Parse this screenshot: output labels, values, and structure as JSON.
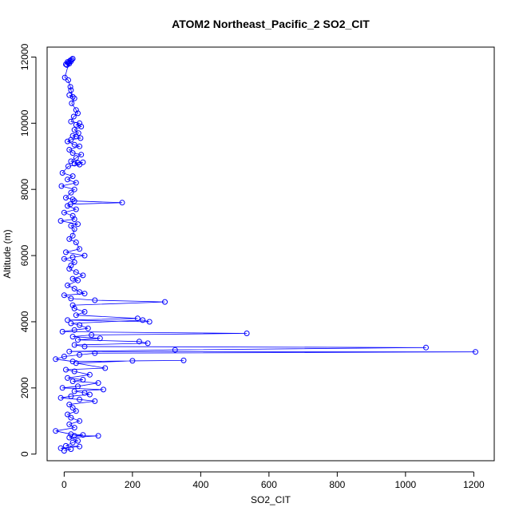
{
  "chart_data": {
    "type": "line",
    "title": "ATOM2 Northeast_Pacific_2 SO2_CIT",
    "xlabel": "SO2_CIT",
    "ylabel": "Altitude (m)",
    "xlim": [
      -50,
      1260
    ],
    "ylim": [
      -200,
      12300
    ],
    "x_ticks": [
      0,
      200,
      400,
      600,
      800,
      1000,
      1200
    ],
    "y_ticks": [
      0,
      2000,
      4000,
      6000,
      8000,
      10000,
      12000
    ],
    "grid": false,
    "legend": "none",
    "series_color": "#0000ff",
    "marker": "open-circle",
    "points": [
      [
        25,
        11950
      ],
      [
        18,
        11900
      ],
      [
        10,
        11850
      ],
      [
        5,
        11780
      ],
      [
        12,
        11820
      ],
      [
        20,
        11870
      ],
      [
        15,
        11800
      ],
      [
        8,
        11760
      ],
      [
        22,
        11920
      ],
      [
        14,
        11840
      ],
      [
        2,
        11380
      ],
      [
        12,
        11300
      ],
      [
        18,
        11100
      ],
      [
        20,
        11000
      ],
      [
        25,
        10800
      ],
      [
        15,
        10850
      ],
      [
        30,
        10750
      ],
      [
        22,
        10600
      ],
      [
        35,
        10400
      ],
      [
        40,
        10300
      ],
      [
        28,
        10200
      ],
      [
        20,
        10050
      ],
      [
        45,
        10000
      ],
      [
        35,
        9950
      ],
      [
        50,
        9900
      ],
      [
        30,
        9800
      ],
      [
        42,
        9700
      ],
      [
        25,
        9620
      ],
      [
        35,
        9600
      ],
      [
        48,
        9550
      ],
      [
        20,
        9500
      ],
      [
        10,
        9450
      ],
      [
        30,
        9350
      ],
      [
        45,
        9300
      ],
      [
        15,
        9200
      ],
      [
        25,
        9100
      ],
      [
        50,
        9050
      ],
      [
        35,
        8950
      ],
      [
        20,
        8850
      ],
      [
        40,
        8800
      ],
      [
        55,
        8820
      ],
      [
        30,
        8780
      ],
      [
        45,
        8750
      ],
      [
        12,
        8700
      ],
      [
        -5,
        8500
      ],
      [
        25,
        8400
      ],
      [
        10,
        8300
      ],
      [
        35,
        8200
      ],
      [
        -8,
        8100
      ],
      [
        30,
        8000
      ],
      [
        20,
        7900
      ],
      [
        5,
        7750
      ],
      [
        25,
        7700
      ],
      [
        30,
        7650
      ],
      [
        170,
        7600
      ],
      [
        18,
        7550
      ],
      [
        10,
        7500
      ],
      [
        35,
        7400
      ],
      [
        0,
        7300
      ],
      [
        25,
        7200
      ],
      [
        30,
        7100
      ],
      [
        -10,
        7050
      ],
      [
        40,
        6950
      ],
      [
        20,
        6900
      ],
      [
        30,
        6800
      ],
      [
        25,
        6600
      ],
      [
        15,
        6500
      ],
      [
        35,
        6400
      ],
      [
        45,
        6200
      ],
      [
        5,
        6100
      ],
      [
        60,
        6000
      ],
      [
        25,
        5950
      ],
      [
        0,
        5900
      ],
      [
        30,
        5800
      ],
      [
        20,
        5700
      ],
      [
        15,
        5600
      ],
      [
        35,
        5500
      ],
      [
        55,
        5400
      ],
      [
        25,
        5300
      ],
      [
        40,
        5250
      ],
      [
        10,
        5100
      ],
      [
        30,
        5000
      ],
      [
        45,
        4900
      ],
      [
        60,
        4850
      ],
      [
        0,
        4800
      ],
      [
        20,
        4700
      ],
      [
        90,
        4650
      ],
      [
        295,
        4600
      ],
      [
        25,
        4500
      ],
      [
        30,
        4400
      ],
      [
        60,
        4300
      ],
      [
        35,
        4200
      ],
      [
        215,
        4100
      ],
      [
        10,
        4050
      ],
      [
        250,
        4000
      ],
      [
        230,
        4050
      ],
      [
        20,
        3950
      ],
      [
        45,
        3900
      ],
      [
        70,
        3800
      ],
      [
        30,
        3750
      ],
      [
        -5,
        3700
      ],
      [
        535,
        3650
      ],
      [
        80,
        3600
      ],
      [
        25,
        3550
      ],
      [
        105,
        3500
      ],
      [
        40,
        3450
      ],
      [
        220,
        3400
      ],
      [
        245,
        3350
      ],
      [
        30,
        3300
      ],
      [
        60,
        3250
      ],
      [
        1060,
        3220
      ],
      [
        325,
        3150
      ],
      [
        15,
        3100
      ],
      [
        1205,
        3090
      ],
      [
        90,
        3050
      ],
      [
        45,
        3000
      ],
      [
        0,
        2950
      ],
      [
        -25,
        2870
      ],
      [
        25,
        2800
      ],
      [
        350,
        2830
      ],
      [
        200,
        2820
      ],
      [
        35,
        2750
      ],
      [
        120,
        2600
      ],
      [
        5,
        2550
      ],
      [
        30,
        2500
      ],
      [
        75,
        2400
      ],
      [
        10,
        2300
      ],
      [
        55,
        2250
      ],
      [
        25,
        2200
      ],
      [
        100,
        2150
      ],
      [
        40,
        2050
      ],
      [
        -5,
        2000
      ],
      [
        115,
        1950
      ],
      [
        30,
        1900
      ],
      [
        60,
        1850
      ],
      [
        75,
        1800
      ],
      [
        20,
        1750
      ],
      [
        -10,
        1700
      ],
      [
        45,
        1650
      ],
      [
        90,
        1600
      ],
      [
        15,
        1500
      ],
      [
        25,
        1400
      ],
      [
        35,
        1300
      ],
      [
        10,
        1200
      ],
      [
        20,
        1100
      ],
      [
        45,
        1000
      ],
      [
        15,
        900
      ],
      [
        30,
        800
      ],
      [
        -25,
        700
      ],
      [
        20,
        600
      ],
      [
        55,
        580
      ],
      [
        30,
        550
      ],
      [
        100,
        550
      ],
      [
        15,
        500
      ],
      [
        40,
        400
      ],
      [
        25,
        350
      ],
      [
        5,
        250
      ],
      [
        45,
        230
      ],
      [
        -10,
        180
      ],
      [
        20,
        150
      ],
      [
        0,
        100
      ]
    ]
  }
}
